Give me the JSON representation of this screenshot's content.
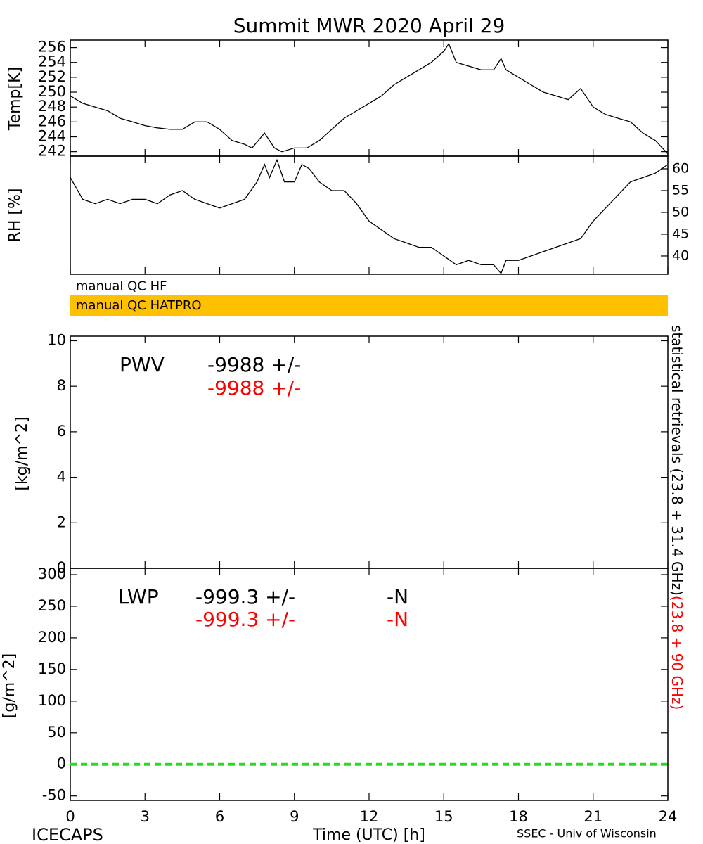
{
  "title": "Summit MWR 2020 April 29",
  "qc_flags": [
    {
      "label": "manual QC HF",
      "color": "#ffffff"
    },
    {
      "label": "manual QC HATPRO",
      "color": "#ffc000"
    }
  ],
  "side_label": {
    "black": "statistical retrievals (23.8 + 31.4 GHz)",
    "red": "(23.8 + 90 GHz)"
  },
  "footer": {
    "left": "ICECAPS",
    "right": "SSEC - Univ of Wisconsin"
  },
  "chart_data": [
    {
      "type": "line",
      "ylabel": "Temp[K]",
      "xlim": [
        0,
        24
      ],
      "ylim": [
        241.4,
        257
      ],
      "yticks": [
        242,
        244,
        246,
        248,
        250,
        252,
        254,
        256
      ],
      "x": [
        0,
        0.5,
        1,
        1.5,
        2,
        2.5,
        3,
        3.5,
        4,
        4.5,
        5,
        5.5,
        6,
        6.5,
        7,
        7.3,
        7.8,
        8.2,
        8.5,
        9,
        9.5,
        10,
        10.5,
        11,
        11.5,
        12,
        12.5,
        13,
        13.5,
        14,
        14.5,
        15,
        15.2,
        15.5,
        16,
        16.5,
        17,
        17.3,
        17.5,
        18,
        18.5,
        19,
        19.5,
        20,
        20.5,
        21,
        21.5,
        22,
        22.5,
        23,
        23.5,
        24
      ],
      "series": [
        {
          "color": "#000000",
          "values": [
            249.5,
            248.5,
            248,
            247.5,
            246.5,
            246,
            245.5,
            245.2,
            245,
            245,
            246,
            246,
            245,
            243.5,
            243,
            242.5,
            244.5,
            242.5,
            242,
            242.5,
            242.5,
            243.5,
            245,
            246.5,
            247.5,
            248.5,
            249.5,
            251,
            252,
            253,
            254,
            255.5,
            256.5,
            254,
            253.5,
            253,
            253,
            254.5,
            253,
            252,
            251,
            250,
            249.5,
            249,
            250.5,
            248,
            247,
            246.5,
            246,
            244.5,
            243.5,
            241.7
          ]
        }
      ]
    },
    {
      "type": "line",
      "ylabel": "RH [%]",
      "xlim": [
        0,
        24
      ],
      "y2lim": [
        35.8,
        62.9
      ],
      "y2ticks": [
        40,
        45,
        50,
        55,
        60
      ],
      "x": [
        0,
        0.5,
        1,
        1.5,
        2,
        2.5,
        3,
        3.5,
        4,
        4.5,
        5,
        5.5,
        6,
        6.5,
        7,
        7.5,
        7.8,
        8,
        8.3,
        8.6,
        9,
        9.3,
        9.6,
        10,
        10.5,
        11,
        11.5,
        12,
        12.5,
        13,
        13.5,
        14,
        14.5,
        15,
        15.5,
        16,
        16.5,
        17,
        17.3,
        17.5,
        18,
        18.5,
        19,
        19.5,
        20,
        20.5,
        21,
        21.5,
        22,
        22.5,
        23,
        23.5,
        24
      ],
      "series": [
        {
          "color": "#000000",
          "axis": "y2",
          "values": [
            58,
            53,
            52,
            53,
            52,
            53,
            53,
            52,
            54,
            55,
            53,
            52,
            51,
            52,
            53,
            57,
            61,
            58,
            62,
            57,
            57,
            61,
            60,
            57,
            55,
            55,
            52,
            48,
            46,
            44,
            43,
            42,
            42,
            40,
            38,
            39,
            38,
            38,
            36,
            39,
            39,
            40,
            41,
            42,
            43,
            44,
            48,
            51,
            54,
            57,
            58,
            59,
            61
          ]
        }
      ]
    },
    {
      "type": "line",
      "ylabel": "[kg/m^2]",
      "xlim": [
        0,
        24
      ],
      "ylim": [
        0,
        10.2
      ],
      "yticks": [
        0,
        2,
        4,
        6,
        8,
        10
      ],
      "series": [],
      "annotations": [
        {
          "text": "PWV",
          "color": "#000000"
        },
        {
          "text": "-9988 +/-",
          "color": "#000000"
        },
        {
          "text": "-9988 +/-",
          "color": "#ff0000"
        }
      ]
    },
    {
      "type": "line",
      "ylabel": "[g/m^2]",
      "xlabel": "Time (UTC) [h]",
      "xlim": [
        0,
        24
      ],
      "xticks": [
        0,
        3,
        6,
        9,
        12,
        15,
        18,
        21,
        24
      ],
      "ylim": [
        -57,
        310
      ],
      "yticks": [
        -50,
        0,
        50,
        100,
        150,
        200,
        250,
        300
      ],
      "series": [],
      "hline": {
        "value": 0,
        "color": "#22dd22"
      },
      "annotations": [
        {
          "text": "LWP",
          "color": "#000000"
        },
        {
          "text": "-999.3 +/-",
          "color": "#000000"
        },
        {
          "text": "-N",
          "color": "#000000"
        },
        {
          "text": "-999.3 +/-",
          "color": "#ff0000"
        },
        {
          "text": "-N",
          "color": "#ff0000"
        }
      ]
    }
  ]
}
